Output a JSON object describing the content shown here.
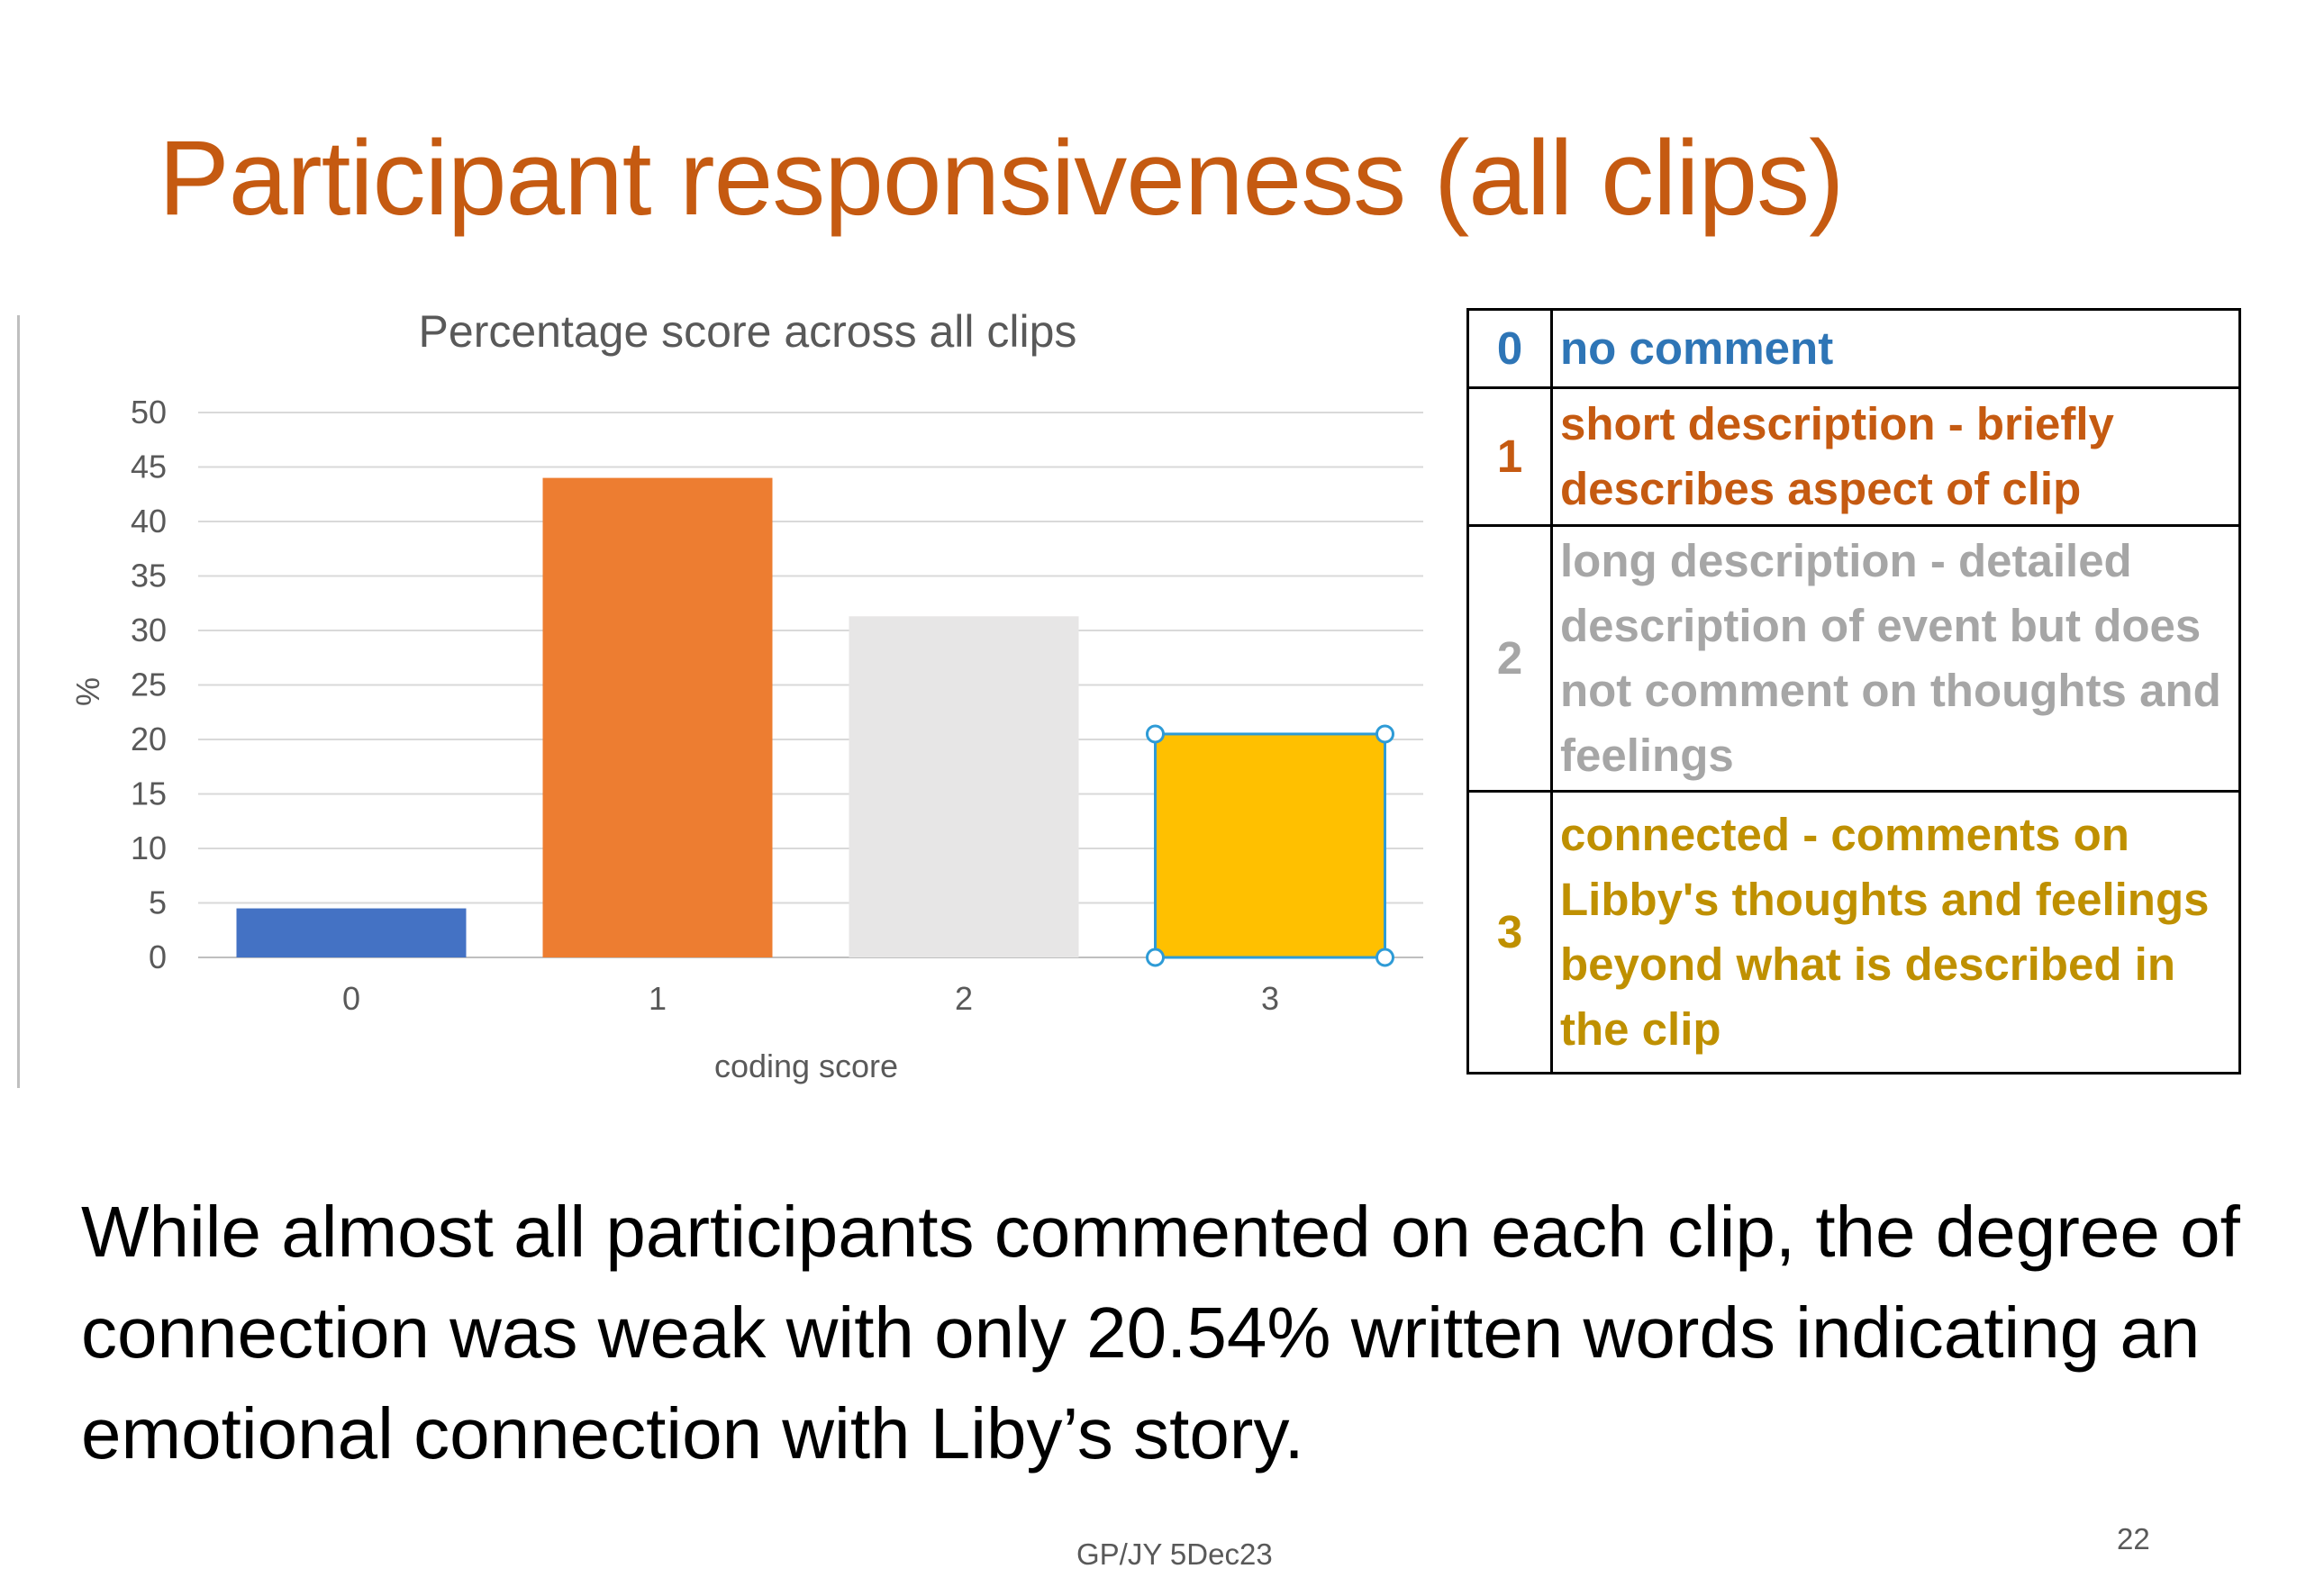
{
  "slide": {
    "title": "Participant responsiveness (all clips)",
    "body": "While almost all participants commented on each clip, the degree of connection was weak with only 20.54% written words indicating an emotional connection with Liby’s story.",
    "footer": "GP/JY 5Dec23",
    "slide_number": "22"
  },
  "legend_table": [
    {
      "code": "0",
      "text": "no comment",
      "color": "#2e75b6"
    },
    {
      "code": "1",
      "text": "short description - briefly describes aspect of clip",
      "color": "#c55a11"
    },
    {
      "code": "2",
      "text": "long description - detailed description of event but does not comment on thoughts and feelings",
      "color": "#a6a6a6"
    },
    {
      "code": "3",
      "text": "connected - comments on Libby's thoughts and feelings beyond what is described in the clip",
      "color": "#bf9000"
    }
  ],
  "chart_data": {
    "type": "bar",
    "title": "Percentage score across all clips",
    "xlabel": "coding score",
    "ylabel": "%",
    "categories": [
      "0",
      "1",
      "2",
      "3"
    ],
    "values": [
      4.5,
      44,
      31.3,
      20.5
    ],
    "colors": [
      "#4472c4",
      "#ed7d31",
      "#e7e6e6",
      "#ffc000"
    ],
    "ylim": [
      0,
      50
    ],
    "yticks": [
      0,
      5,
      10,
      15,
      20,
      25,
      30,
      35,
      40,
      45,
      50
    ],
    "grid": true,
    "selected_bar": "3"
  }
}
